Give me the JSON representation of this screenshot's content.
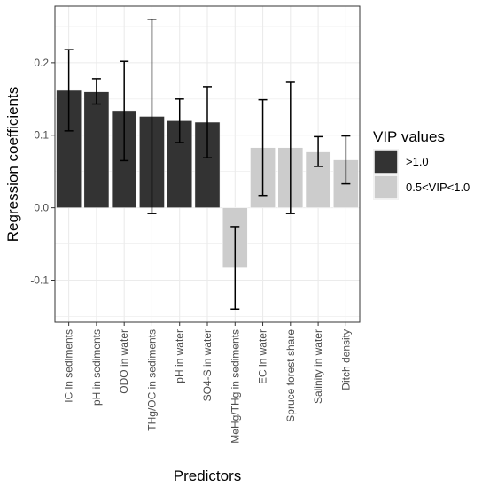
{
  "chart_data": {
    "type": "bar",
    "xlabel": "Predictors",
    "ylabel": "Regression coefficients",
    "ylim": [
      -0.158,
      0.278
    ],
    "yticks": [
      -0.1,
      0.0,
      0.1,
      0.2
    ],
    "ytick_labels": [
      "-0.1",
      "0.0",
      "0.1",
      "0.2"
    ],
    "grid": true,
    "legend": {
      "title": "VIP values",
      "position": "right",
      "entries": [
        {
          "label": ">1.0",
          "color": "#333333"
        },
        {
          "label": "0.5<VIP<1.0",
          "color": "#cccccc"
        }
      ]
    },
    "bars": [
      {
        "category": "IC in sediments",
        "value": 0.162,
        "err_low": 0.106,
        "err_high": 0.218,
        "group": ">1.0"
      },
      {
        "category": "pH in sediments",
        "value": 0.16,
        "err_low": 0.143,
        "err_high": 0.178,
        "group": ">1.0"
      },
      {
        "category": "ODO in water",
        "value": 0.134,
        "err_low": 0.065,
        "err_high": 0.202,
        "group": ">1.0"
      },
      {
        "category": "THg/OC in sediments",
        "value": 0.126,
        "err_low": -0.008,
        "err_high": 0.26,
        "group": ">1.0"
      },
      {
        "category": "pH in water",
        "value": 0.12,
        "err_low": 0.09,
        "err_high": 0.15,
        "group": ">1.0"
      },
      {
        "category": "SO4-S in water",
        "value": 0.118,
        "err_low": 0.069,
        "err_high": 0.167,
        "group": ">1.0"
      },
      {
        "category": "MeHg/THg in sediments",
        "value": -0.083,
        "err_low": -0.14,
        "err_high": -0.026,
        "group": "0.5<VIP<1.0"
      },
      {
        "category": "EC in water",
        "value": 0.083,
        "err_low": 0.017,
        "err_high": 0.149,
        "group": "0.5<VIP<1.0"
      },
      {
        "category": "Spruce forest share",
        "value": 0.083,
        "err_low": -0.008,
        "err_high": 0.173,
        "group": "0.5<VIP<1.0"
      },
      {
        "category": "Salinity in water",
        "value": 0.077,
        "err_low": 0.057,
        "err_high": 0.098,
        "group": "0.5<VIP<1.0"
      },
      {
        "category": "Ditch density",
        "value": 0.066,
        "err_low": 0.033,
        "err_high": 0.099,
        "group": "0.5<VIP<1.0"
      }
    ]
  }
}
